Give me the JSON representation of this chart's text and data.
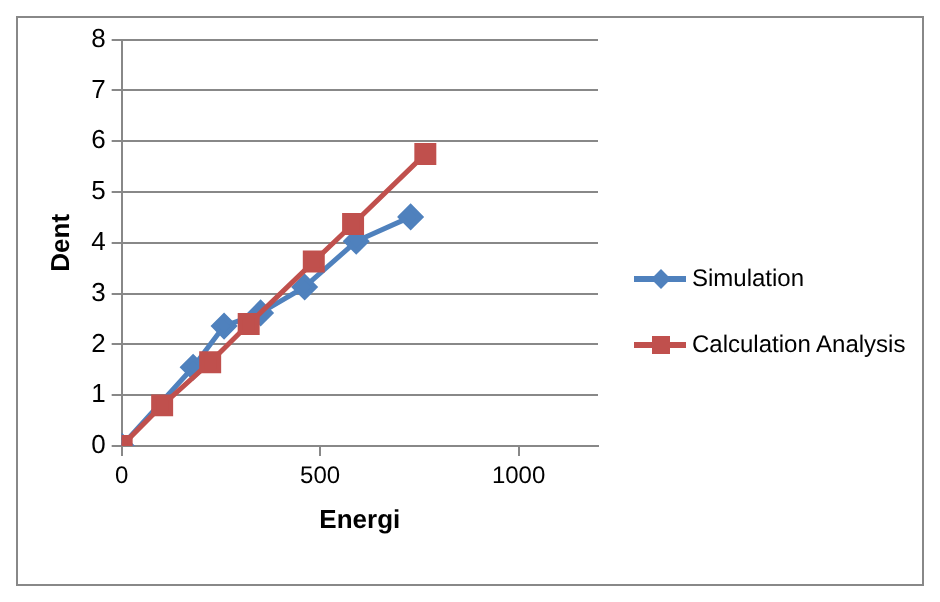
{
  "chart_data": {
    "type": "line",
    "xlabel": "Energi",
    "ylabel": "Dent",
    "xlim": [
      0,
      1200
    ],
    "xticks": [
      0,
      500,
      1000
    ],
    "ylim": [
      0,
      8
    ],
    "yticks": [
      0,
      1,
      2,
      3,
      4,
      5,
      6,
      7,
      8
    ],
    "grid": "y",
    "legend": "right",
    "series": [
      {
        "name": "Simulation",
        "color": "#4f81bd",
        "marker": "diamond",
        "x": [
          0,
          180,
          258,
          350,
          461,
          591,
          728
        ],
        "values": [
          0,
          1.55,
          2.36,
          2.62,
          3.13,
          4.03,
          4.51
        ]
      },
      {
        "name": "Calculation Analysis",
        "color": "#c0504d",
        "marker": "square",
        "x": [
          0,
          102,
          223,
          320,
          484,
          583,
          765
        ],
        "values": [
          0,
          0.8,
          1.65,
          2.4,
          3.63,
          4.37,
          5.75
        ]
      }
    ]
  }
}
